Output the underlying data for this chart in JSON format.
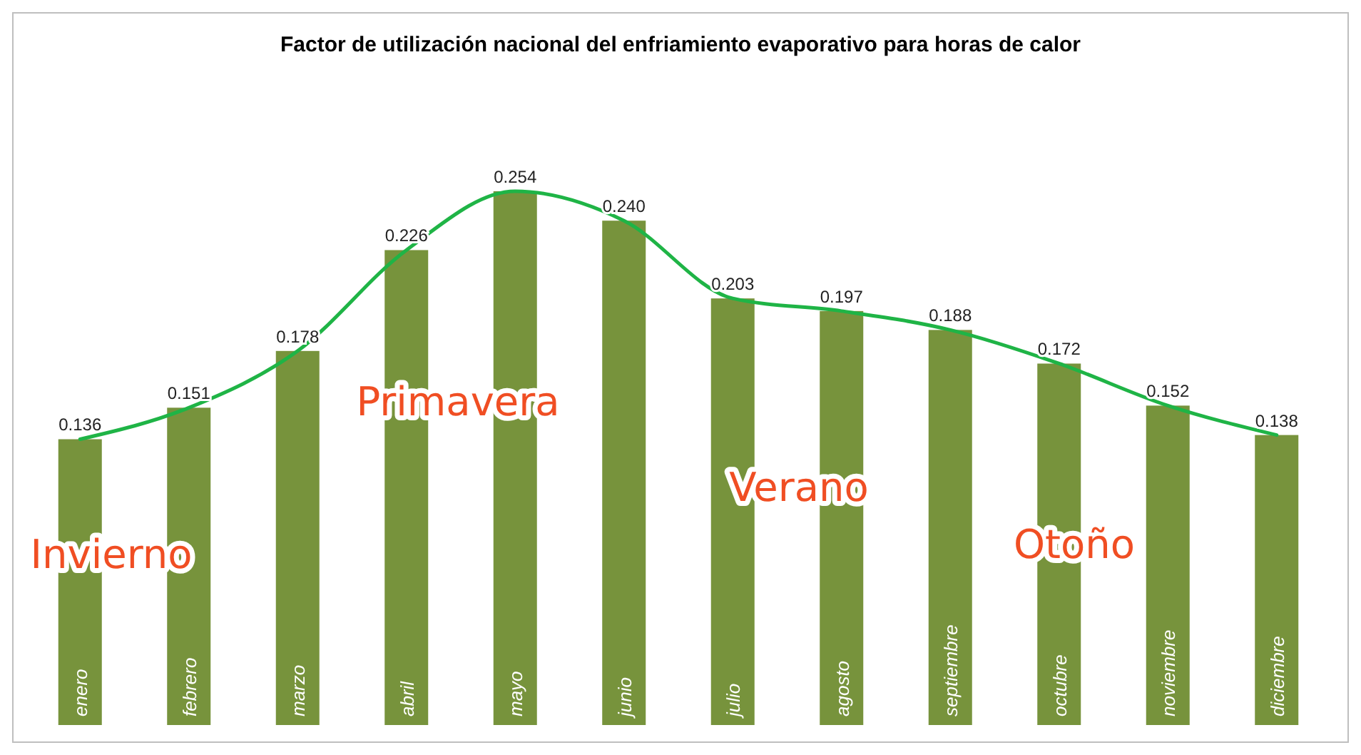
{
  "chart_data": {
    "type": "bar",
    "title": "Factor de utilización nacional del enfriamiento evaporativo para horas de calor",
    "categories": [
      "enero",
      "febrero",
      "marzo",
      "abril",
      "mayo",
      "junio",
      "julio",
      "agosto",
      "septiembre",
      "octubre",
      "noviembre",
      "diciembre"
    ],
    "series": [
      {
        "color": "#77933c",
        "values": [
          0.136,
          0.151,
          0.178,
          0.226,
          0.254,
          0.24,
          0.203,
          0.197,
          0.188,
          0.172,
          0.152,
          0.138
        ],
        "value_labels": [
          "0.136",
          "0.151",
          "0.178",
          "0.226",
          "0.254",
          "0.240",
          "0.203",
          "0.197",
          "0.188",
          "0.172",
          "0.152",
          "0.138"
        ]
      },
      {
        "type": "line",
        "color": "#1fb446",
        "values": [
          0.136,
          0.151,
          0.178,
          0.226,
          0.254,
          0.24,
          0.203,
          0.197,
          0.188,
          0.172,
          0.152,
          0.138
        ]
      }
    ],
    "annotations": [
      "Invierno",
      "Primavera",
      "Verano",
      "Otoño"
    ]
  }
}
